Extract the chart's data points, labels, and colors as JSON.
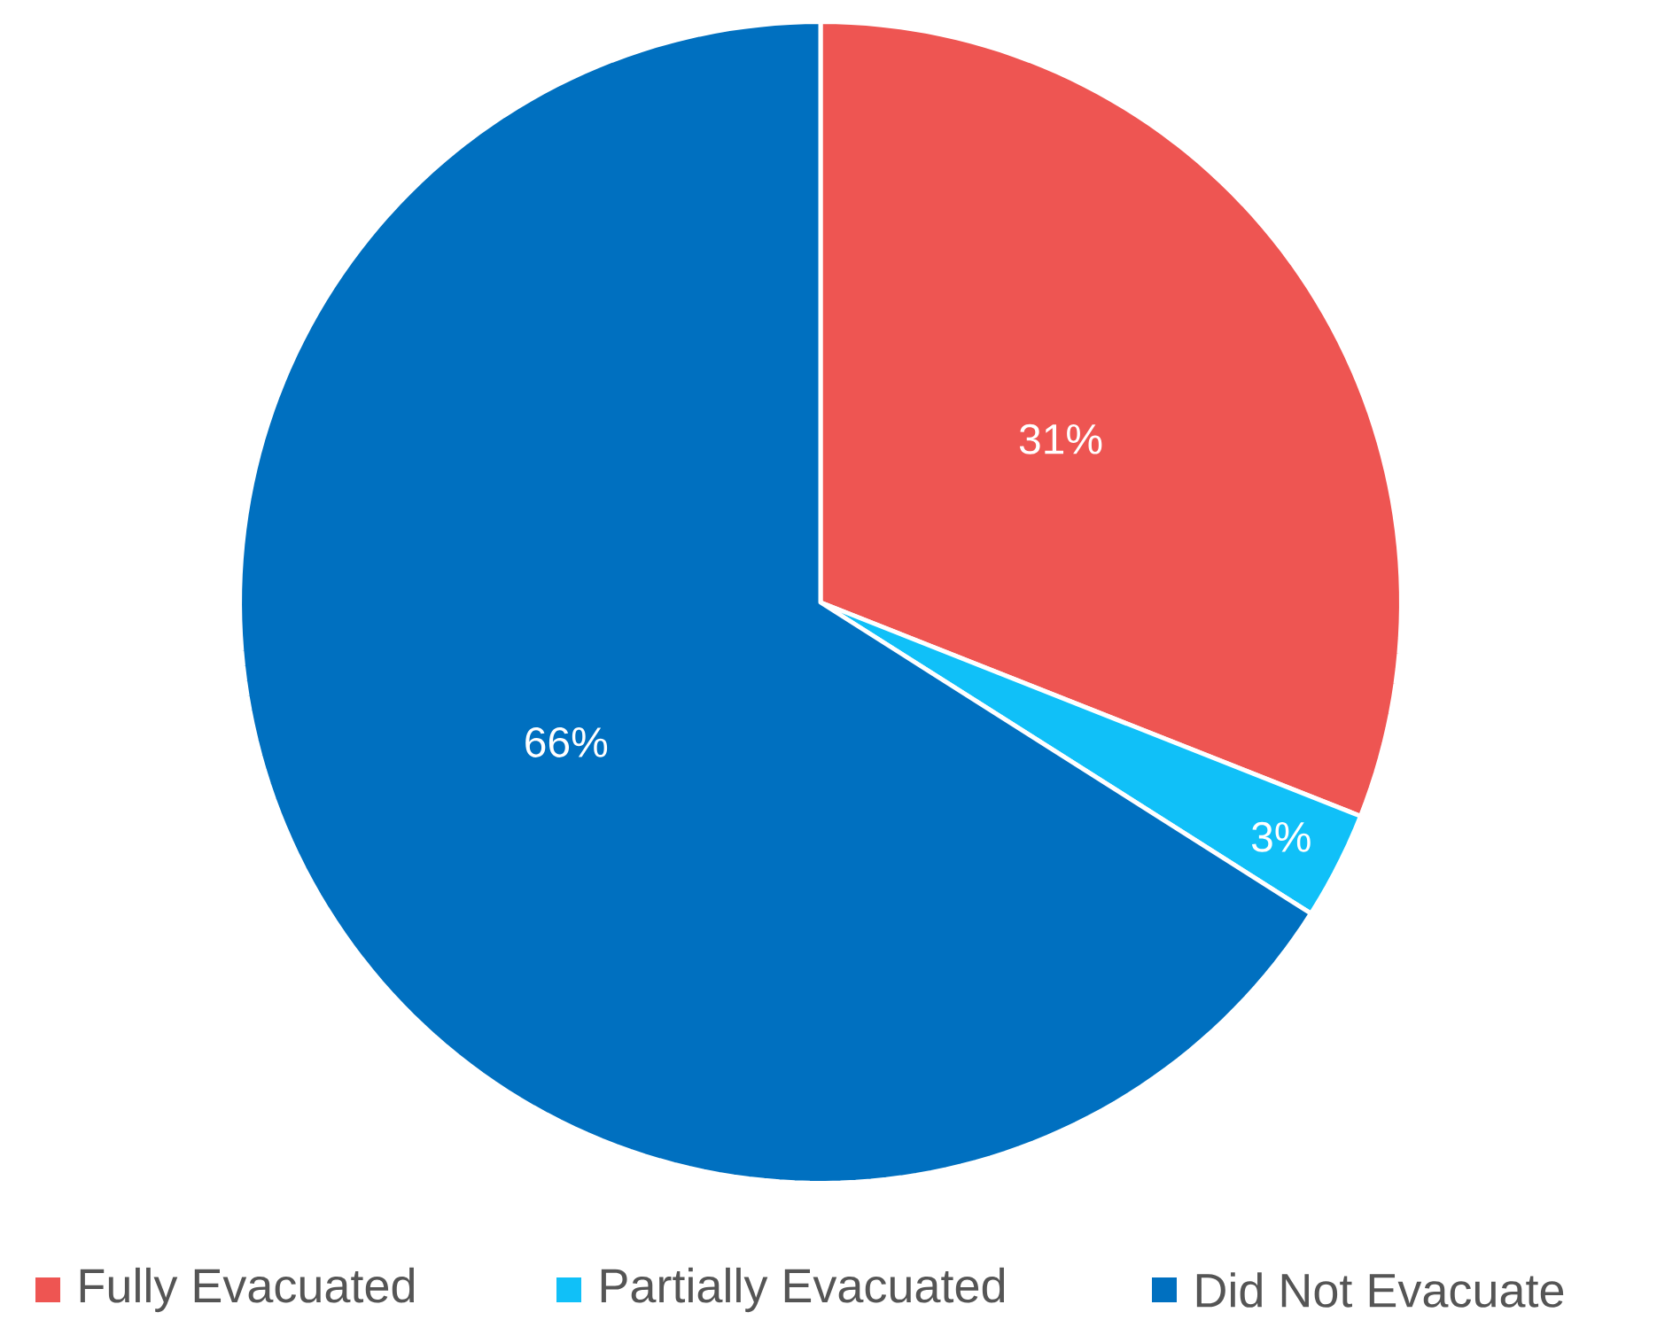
{
  "chart_data": {
    "type": "pie",
    "categories": [
      "Fully Evacuated",
      "Partially Evacuated",
      "Did Not Evacuate"
    ],
    "values": [
      31,
      3,
      66
    ],
    "colors": [
      "#ee5552",
      "#10c0f8",
      "#0070c0"
    ],
    "value_labels": [
      "31%",
      "3%",
      "66%"
    ],
    "legend": "bottom"
  }
}
